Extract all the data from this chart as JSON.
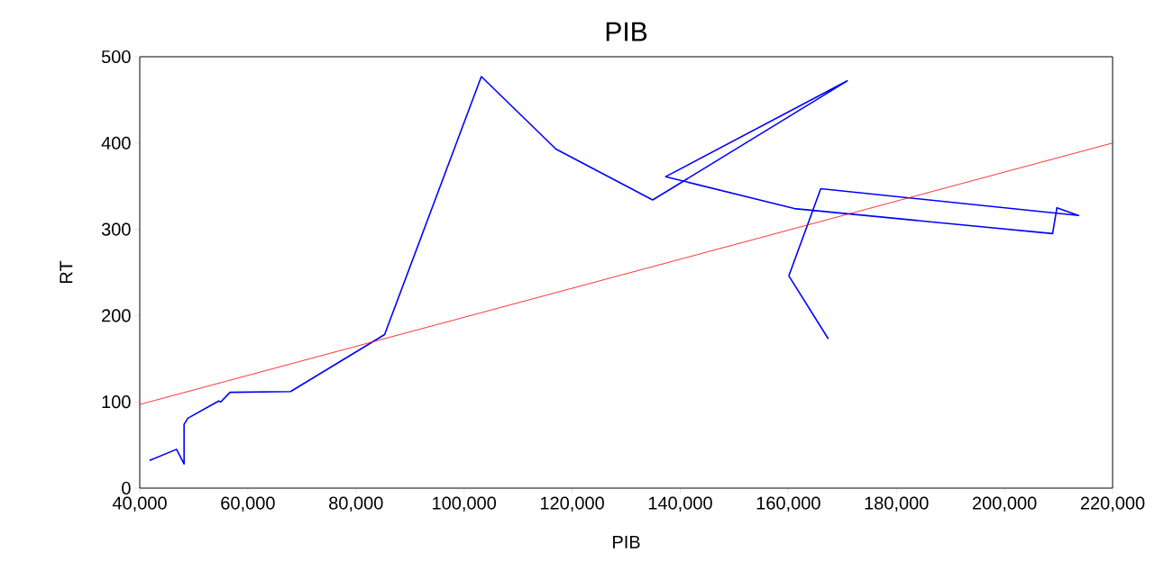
{
  "chart_data": {
    "type": "line",
    "title": "PIB",
    "xlabel": "PIB",
    "ylabel": "RT",
    "xlim": [
      40000,
      220000
    ],
    "ylim": [
      0,
      500
    ],
    "xticks": [
      {
        "value": 40000,
        "label": "40,000"
      },
      {
        "value": 60000,
        "label": "60,000"
      },
      {
        "value": 80000,
        "label": "80,000"
      },
      {
        "value": 100000,
        "label": "100,000"
      },
      {
        "value": 120000,
        "label": "120,000"
      },
      {
        "value": 140000,
        "label": "140,000"
      },
      {
        "value": 160000,
        "label": "160,000"
      },
      {
        "value": 180000,
        "label": "180,000"
      },
      {
        "value": 200000,
        "label": "200,000"
      },
      {
        "value": 220000,
        "label": "220,000"
      }
    ],
    "yticks": [
      0,
      100,
      200,
      300,
      400,
      500
    ],
    "grid": false,
    "marker": "none",
    "line_style": "solid",
    "series": [
      {
        "color": "#0000ff",
        "x": [
          41800,
          46800,
          48200,
          48200,
          48900,
          54600,
          55000,
          56700,
          67900,
          85300,
          103200,
          117000,
          134900,
          170900,
          137300,
          161100,
          208900,
          209700,
          213700,
          166000,
          160100,
          167400
        ],
        "values": [
          32,
          45,
          28,
          74,
          81,
          101,
          100,
          111,
          112,
          178,
          477,
          393,
          334,
          472,
          361,
          324,
          295,
          325,
          316,
          347,
          246,
          173
        ]
      },
      {
        "color": "#ff0000",
        "x": [
          40000,
          220000
        ],
        "values": [
          97,
          400
        ]
      }
    ]
  }
}
